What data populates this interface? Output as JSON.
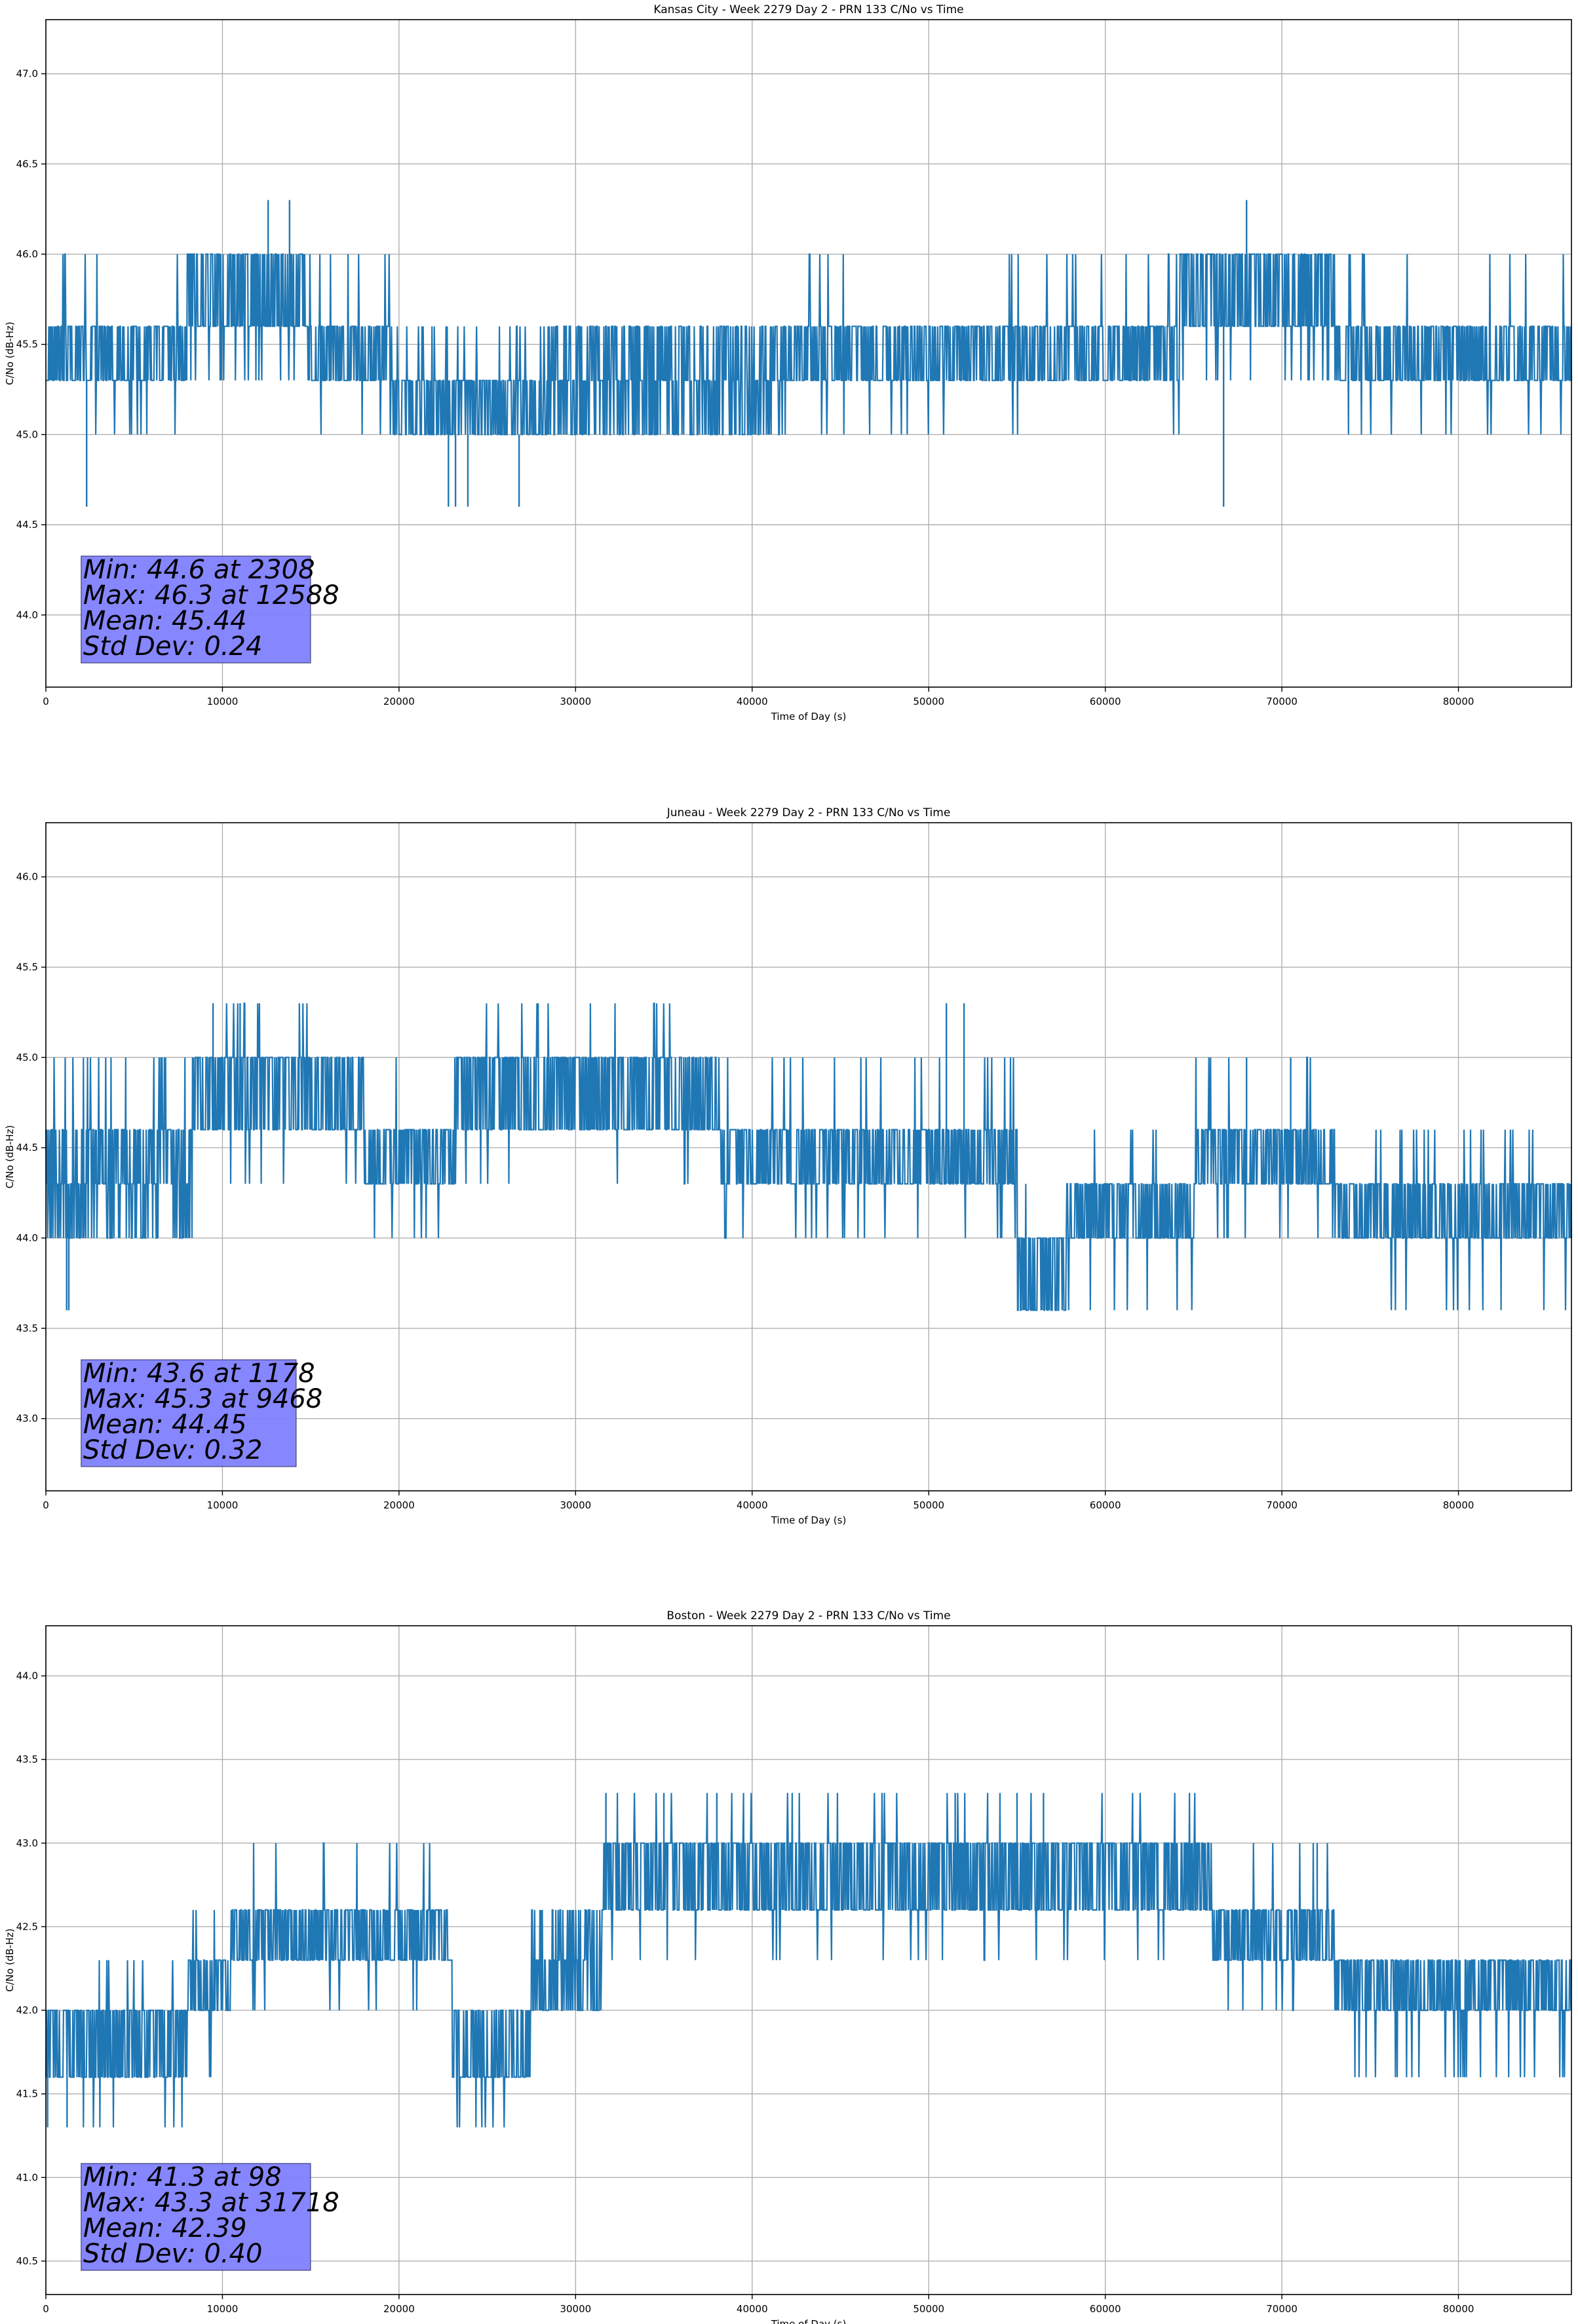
{
  "chart_data": [
    {
      "type": "line",
      "title": "Kansas City - Week 2279 Day 2 - PRN 133 C/No vs Time",
      "xlabel": "Time of Day (s)",
      "ylabel": "C/No (dB-Hz)",
      "xlim": [
        0,
        86400
      ],
      "ylim": [
        43.6,
        47.3
      ],
      "xticks": [
        0,
        10000,
        20000,
        30000,
        40000,
        50000,
        60000,
        70000,
        80000
      ],
      "yticks": [
        "44.0",
        "44.5",
        "45.0",
        "45.5",
        "46.0",
        "46.5",
        "47.0"
      ],
      "grid": true,
      "color": "#1f77b4",
      "stats_box_color": "#8080ff",
      "stats": [
        "Min: 44.6 at 2308",
        "Max: 46.3 at 12588",
        "Mean: 45.44",
        "Std Dev: 0.24"
      ],
      "segments": [
        {
          "start": 0,
          "end": 8000,
          "levels": [
            45.3,
            45.6
          ],
          "rare": [
            45.0,
            46.0
          ]
        },
        {
          "start": 8000,
          "end": 14800,
          "levels": [
            45.6,
            46.0
          ],
          "rare": [
            45.3
          ]
        },
        {
          "start": 14800,
          "end": 19500,
          "levels": [
            45.3,
            45.6
          ],
          "rare": [
            46.0,
            45.0
          ]
        },
        {
          "start": 19500,
          "end": 28000,
          "levels": [
            45.0,
            45.3
          ],
          "rare": [
            45.6
          ]
        },
        {
          "start": 28000,
          "end": 41500,
          "levels": [
            45.0,
            45.3,
            45.6
          ],
          "rare": []
        },
        {
          "start": 41500,
          "end": 64200,
          "levels": [
            45.3,
            45.6
          ],
          "rare": [
            45.0,
            46.0
          ]
        },
        {
          "start": 64200,
          "end": 73000,
          "levels": [
            45.6,
            46.0
          ],
          "rare": [
            45.3
          ]
        },
        {
          "start": 73000,
          "end": 86400,
          "levels": [
            45.3,
            45.6
          ],
          "rare": [
            46.0,
            45.0
          ]
        }
      ],
      "spikes": [
        [
          2308,
          44.6
        ],
        [
          22800,
          44.6
        ],
        [
          23200,
          44.6
        ],
        [
          23900,
          44.6
        ],
        [
          26800,
          44.6
        ],
        [
          66700,
          44.6
        ],
        [
          12588,
          46.3
        ],
        [
          13800,
          46.3
        ],
        [
          68000,
          46.3
        ]
      ]
    },
    {
      "type": "line",
      "title": "Juneau - Week 2279 Day 2 - PRN 133 C/No vs Time",
      "xlabel": "Time of Day (s)",
      "ylabel": "C/No (dB-Hz)",
      "xlim": [
        0,
        86400
      ],
      "ylim": [
        42.6,
        46.3
      ],
      "xticks": [
        0,
        10000,
        20000,
        30000,
        40000,
        50000,
        60000,
        70000,
        80000
      ],
      "yticks": [
        "43.0",
        "43.5",
        "44.0",
        "44.5",
        "45.0",
        "45.5",
        "46.0"
      ],
      "grid": true,
      "color": "#1f77b4",
      "stats_box_color": "#8080ff",
      "stats": [
        "Min: 43.6 at 1178",
        "Max: 45.3 at 9468",
        "Mean: 44.45",
        "Std Dev: 0.32"
      ],
      "segments": [
        {
          "start": 0,
          "end": 8300,
          "levels": [
            44.0,
            44.3,
            44.6
          ],
          "rare": [
            45.0
          ]
        },
        {
          "start": 8300,
          "end": 18000,
          "levels": [
            44.6,
            45.0
          ],
          "rare": [
            44.3,
            45.3
          ]
        },
        {
          "start": 18000,
          "end": 23200,
          "levels": [
            44.3,
            44.6
          ],
          "rare": [
            45.0,
            44.0
          ]
        },
        {
          "start": 23200,
          "end": 38200,
          "levels": [
            44.6,
            45.0
          ],
          "rare": [
            45.3,
            44.3
          ]
        },
        {
          "start": 38200,
          "end": 55000,
          "levels": [
            44.3,
            44.6
          ],
          "rare": [
            45.0,
            44.0
          ]
        },
        {
          "start": 55000,
          "end": 57800,
          "levels": [
            43.6,
            44.0
          ],
          "rare": [
            44.3
          ]
        },
        {
          "start": 57800,
          "end": 65000,
          "levels": [
            44.0,
            44.3
          ],
          "rare": [
            44.6,
            43.6
          ]
        },
        {
          "start": 65000,
          "end": 73000,
          "levels": [
            44.3,
            44.6
          ],
          "rare": [
            44.0,
            45.0
          ]
        },
        {
          "start": 73000,
          "end": 86400,
          "levels": [
            44.0,
            44.3
          ],
          "rare": [
            43.6,
            44.6
          ]
        }
      ],
      "spikes": [
        [
          1178,
          43.6
        ],
        [
          1300,
          43.6
        ],
        [
          9468,
          45.3
        ],
        [
          11000,
          45.3
        ],
        [
          51000,
          45.3
        ],
        [
          52000,
          45.3
        ],
        [
          68000,
          45.0
        ],
        [
          70500,
          45.0
        ]
      ]
    },
    {
      "type": "line",
      "title": "Boston - Week 2279 Day 2 - PRN 133 C/No vs Time",
      "xlabel": "Time of Day (s)",
      "ylabel": "C/No (dB-Hz)",
      "xlim": [
        0,
        86400
      ],
      "ylim": [
        40.3,
        44.3
      ],
      "xticks": [
        0,
        10000,
        20000,
        30000,
        40000,
        50000,
        60000,
        70000,
        80000
      ],
      "yticks": [
        "40.5",
        "41.0",
        "41.5",
        "42.0",
        "42.5",
        "43.0",
        "43.5",
        "44.0"
      ],
      "grid": true,
      "color": "#1f77b4",
      "stats_box_color": "#8080ff",
      "stats": [
        "Min: 41.3 at 98",
        "Max: 43.3 at 31718",
        "Mean: 42.39",
        "Std Dev: 0.40"
      ],
      "segments": [
        {
          "start": 0,
          "end": 8000,
          "levels": [
            41.6,
            42.0
          ],
          "rare": [
            41.3,
            42.3
          ]
        },
        {
          "start": 8000,
          "end": 10500,
          "levels": [
            42.0,
            42.3
          ],
          "rare": [
            41.6,
            42.6
          ]
        },
        {
          "start": 10500,
          "end": 23000,
          "levels": [
            42.3,
            42.6
          ],
          "rare": [
            42.0,
            43.0
          ]
        },
        {
          "start": 23000,
          "end": 27500,
          "levels": [
            41.6,
            42.0
          ],
          "rare": [
            41.3
          ]
        },
        {
          "start": 27500,
          "end": 31500,
          "levels": [
            42.0,
            42.3,
            42.6
          ],
          "rare": []
        },
        {
          "start": 31500,
          "end": 66000,
          "levels": [
            42.6,
            43.0
          ],
          "rare": [
            42.3,
            43.3
          ]
        },
        {
          "start": 66000,
          "end": 73000,
          "levels": [
            42.3,
            42.6
          ],
          "rare": [
            42.0,
            43.0
          ]
        },
        {
          "start": 73000,
          "end": 86400,
          "levels": [
            42.0,
            42.3
          ],
          "rare": [
            41.6
          ]
        }
      ],
      "spikes": [
        [
          98,
          41.3
        ],
        [
          1200,
          41.3
        ],
        [
          31718,
          43.3
        ],
        [
          35000,
          43.3
        ],
        [
          38000,
          43.3
        ],
        [
          51500,
          43.3
        ],
        [
          55000,
          43.3
        ],
        [
          56500,
          43.3
        ],
        [
          72000,
          43.0
        ]
      ]
    }
  ]
}
